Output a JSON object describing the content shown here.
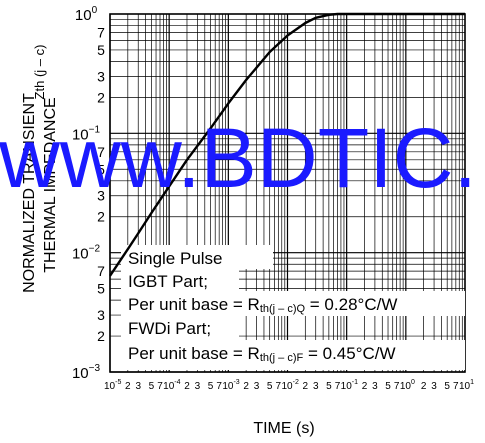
{
  "chart_data": {
    "type": "line",
    "ylabel_line1": "NORMALIZED TRANSIENT",
    "ylabel_line2": "THERMAL IMPEDANCE",
    "ylabel_symbol": "Zth (j – c)",
    "xlabel": "TIME (s)",
    "x_scale": "log",
    "y_scale": "log",
    "xlim": [
      1e-05,
      10
    ],
    "ylim": [
      0.001,
      1
    ],
    "grid": true,
    "x_decades": [
      {
        "base": "10",
        "exp": "-5",
        "minor": "2 3 5 7"
      },
      {
        "base": "10",
        "exp": "-4",
        "minor": "2 3 5 7"
      },
      {
        "base": "10",
        "exp": "-3",
        "minor": "2 3 5 7"
      },
      {
        "base": "10",
        "exp": "-2",
        "minor": "2 3 5 7"
      },
      {
        "base": "10",
        "exp": "-1",
        "minor": "2 3 5 7"
      },
      {
        "base": "10",
        "exp": "0",
        "minor": "2 3 5 7"
      },
      {
        "base": "10",
        "exp": "1",
        "minor": ""
      }
    ],
    "y_decades": [
      {
        "base": "10",
        "exp": "0",
        "value": 1
      },
      {
        "base": "10",
        "exp": "−1",
        "value": 0.1
      },
      {
        "base": "10",
        "exp": "−2",
        "value": 0.01
      },
      {
        "base": "10",
        "exp": "−3",
        "value": 0.001
      }
    ],
    "y_minor_labels": [
      "7",
      "5",
      "3",
      "2"
    ],
    "series": [
      {
        "x": [
          1e-05,
          2e-05,
          3e-05,
          5e-05,
          0.0001,
          0.0002,
          0.0005,
          0.001,
          0.002,
          0.005,
          0.01,
          0.02,
          0.03,
          0.05,
          0.07,
          0.1,
          0.2
        ],
        "y": [
          0.0064,
          0.0107,
          0.0145,
          0.0215,
          0.036,
          0.06,
          0.11,
          0.178,
          0.28,
          0.48,
          0.66,
          0.84,
          0.93,
          0.985,
          1.0,
          1.0,
          1.0
        ]
      }
    ],
    "annotations": {
      "line1": "Single Pulse",
      "line2": "IGBT Part;",
      "line3_prefix": "Per unit base = R",
      "line3_sub": "th(j – c)Q",
      "line3_suffix": " = 0.28°C/W",
      "line4": "FWDi Part;",
      "line5_prefix": "Per unit base = R",
      "line5_sub": "th(j – c)F",
      "line5_suffix": " = 0.45°C/W"
    }
  },
  "watermark": "www.BDTIC."
}
